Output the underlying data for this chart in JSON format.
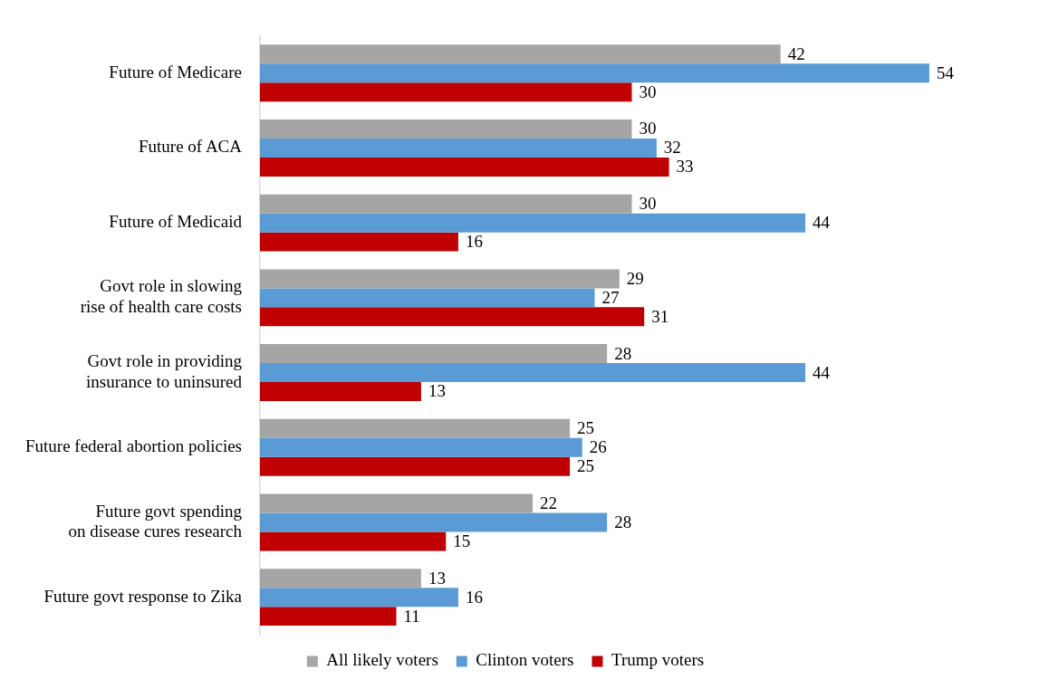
{
  "chart_data": {
    "type": "bar",
    "orientation": "horizontal",
    "data_labels": true,
    "legend": "bottom",
    "categories": [
      "Future of Medicare",
      "Future of ACA",
      "Future of Medicaid",
      "Govt role in slowing\nrise of health care costs",
      "Govt role in providing\ninsurance to uninsured",
      "Future federal abortion policies",
      "Future govt spending\non disease cures research",
      "Future govt response to Zika"
    ],
    "series": [
      {
        "name": "All likely voters",
        "color": "#a5a5a5",
        "values": [
          42,
          30,
          30,
          29,
          28,
          25,
          22,
          13
        ]
      },
      {
        "name": "Clinton voters",
        "color": "#5b9bd5",
        "values": [
          54,
          32,
          44,
          27,
          44,
          26,
          28,
          16
        ]
      },
      {
        "name": "Trump voters",
        "color": "#c00000",
        "values": [
          30,
          33,
          16,
          31,
          13,
          25,
          15,
          11
        ]
      }
    ]
  }
}
